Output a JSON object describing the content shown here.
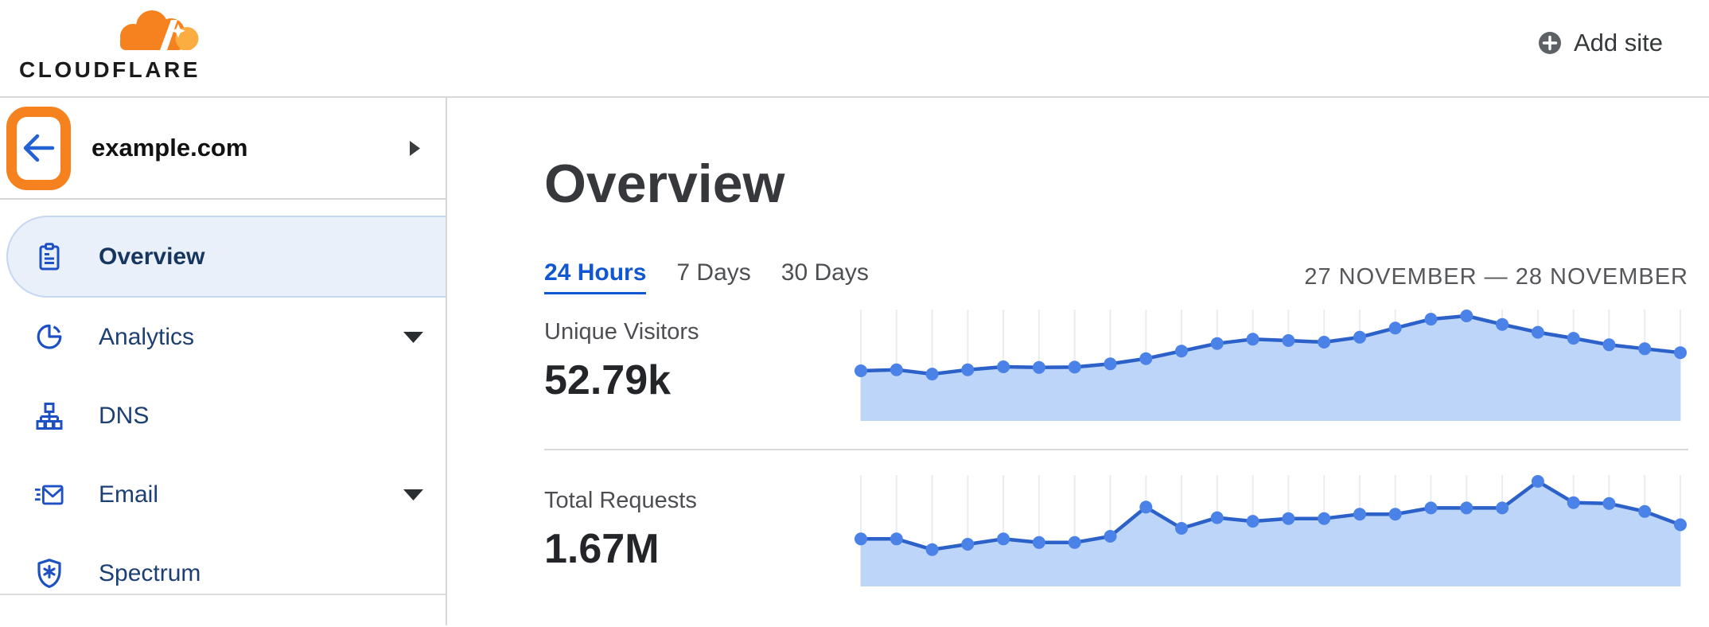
{
  "header": {
    "logo_text": "CLOUDFLARE",
    "add_site_label": "Add site"
  },
  "sidebar": {
    "site_name": "example.com",
    "items": [
      {
        "label": "Overview",
        "icon": "clipboard-icon",
        "selected": true,
        "expandable": false
      },
      {
        "label": "Analytics",
        "icon": "pie-chart-icon",
        "selected": false,
        "expandable": true
      },
      {
        "label": "DNS",
        "icon": "network-icon",
        "selected": false,
        "expandable": false
      },
      {
        "label": "Email",
        "icon": "email-icon",
        "selected": false,
        "expandable": true
      },
      {
        "label": "Spectrum",
        "icon": "shield-icon",
        "selected": false,
        "expandable": false
      }
    ]
  },
  "main": {
    "title": "Overview",
    "tabs": [
      {
        "label": "24 Hours",
        "active": true
      },
      {
        "label": "7 Days",
        "active": false
      },
      {
        "label": "30 Days",
        "active": false
      }
    ],
    "date_range": "27 NOVEMBER — 28 NOVEMBER",
    "metrics": [
      {
        "label": "Unique Visitors",
        "value": "52.79k"
      },
      {
        "label": "Total Requests",
        "value": "1.67M"
      }
    ]
  },
  "chart_data": [
    {
      "type": "area",
      "metric": "Unique Visitors",
      "total_shown": "52.79k",
      "n_points": 24,
      "x_axis_labeled": false,
      "y_axis_labeled": false,
      "grid": "vertical-only",
      "legend": "none",
      "values_estimated_k": [
        1.43,
        1.46,
        1.33,
        1.46,
        1.55,
        1.53,
        1.54,
        1.64,
        1.8,
        2.03,
        2.26,
        2.39,
        2.35,
        2.3,
        2.45,
        2.73,
        3.0,
        3.1,
        2.84,
        2.6,
        2.42,
        2.22,
        2.1,
        1.98
      ]
    },
    {
      "type": "area",
      "metric": "Total Requests",
      "total_shown": "1.67M",
      "n_points": 24,
      "x_axis_labeled": false,
      "y_axis_labeled": false,
      "grid": "vertical-only",
      "legend": "none",
      "values_estimated_k": [
        50,
        50,
        38,
        44,
        50,
        46,
        46,
        53,
        86,
        62,
        74,
        70,
        73,
        73,
        78,
        78,
        85,
        85,
        85,
        115,
        91,
        90,
        81,
        66
      ]
    }
  ],
  "colors": {
    "accent_orange": "#F6821F",
    "accent_orange_light": "#FBAD41",
    "link_blue": "#1257d2",
    "navy": "#1d3f73",
    "icon_blue": "#1d50c5",
    "chart_line": "#2b61c9",
    "chart_dot": "#4b82e8",
    "chart_fill": "#bdd5f8",
    "chart_grid": "#e9edf2",
    "divider": "#d8d9da",
    "heading": "#36383b",
    "text_gray": "#4d4f52",
    "value_dark": "#232528",
    "date_gray": "#55575a",
    "pill_bg": "#e9f0fa",
    "pill_border": "#c6d7f2"
  }
}
